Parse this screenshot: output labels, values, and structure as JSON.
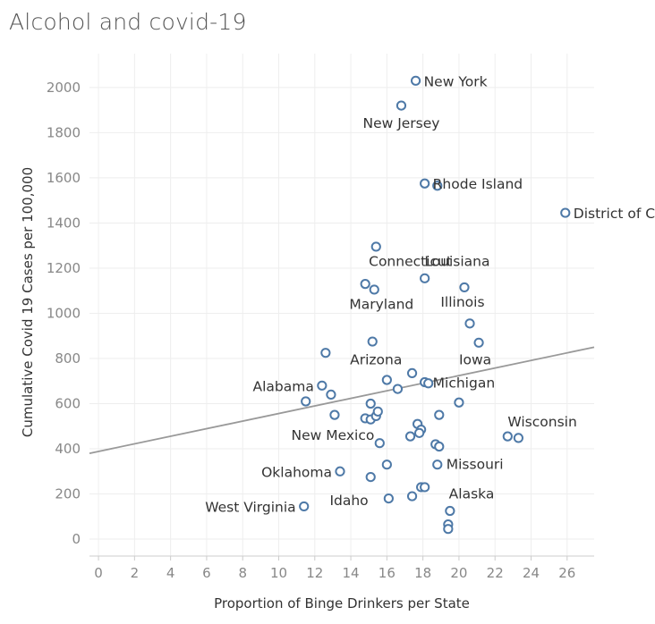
{
  "chart_data": {
    "type": "scatter",
    "title": "Alcohol and covid-19",
    "xlabel": "Proportion of Binge Drinkers per State",
    "ylabel": "Cumulative Covid 19 Cases per 100,000",
    "xlim": [
      -0.5,
      27.5
    ],
    "ylim": [
      -75,
      2150
    ],
    "x_ticks": [
      0,
      2,
      4,
      6,
      8,
      10,
      12,
      14,
      16,
      18,
      20,
      22,
      24,
      26
    ],
    "y_ticks": [
      0,
      200,
      400,
      600,
      800,
      1000,
      1200,
      1400,
      1600,
      1800,
      2000
    ],
    "grid": true,
    "trend_line": {
      "x": [
        -0.5,
        27.5
      ],
      "y": [
        380,
        850
      ]
    },
    "marker_color": "#4e79a7",
    "trend_color": "#999999",
    "points": [
      {
        "x": 17.6,
        "y": 2030,
        "label": "New York"
      },
      {
        "x": 16.8,
        "y": 1920,
        "label": "New Jersey"
      },
      {
        "x": 18.1,
        "y": 1575,
        "label": "Rhode Island"
      },
      {
        "x": 18.8,
        "y": 1565,
        "label": ""
      },
      {
        "x": 25.9,
        "y": 1445,
        "label": "District of Columbia"
      },
      {
        "x": 15.4,
        "y": 1295,
        "label": ""
      },
      {
        "x": 18.1,
        "y": 1155,
        "label": ""
      },
      {
        "x": 14.8,
        "y": 1130,
        "label": ""
      },
      {
        "x": 15.3,
        "y": 1105,
        "label": ""
      },
      {
        "x": 20.3,
        "y": 1115,
        "label": ""
      },
      {
        "x": 20.6,
        "y": 955,
        "label": ""
      },
      {
        "x": 15.2,
        "y": 875,
        "label": ""
      },
      {
        "x": 21.1,
        "y": 870,
        "label": ""
      },
      {
        "x": 12.6,
        "y": 825,
        "label": ""
      },
      {
        "x": 17.4,
        "y": 735,
        "label": ""
      },
      {
        "x": 16.0,
        "y": 705,
        "label": ""
      },
      {
        "x": 18.1,
        "y": 695,
        "label": "Michigan"
      },
      {
        "x": 18.3,
        "y": 690,
        "label": ""
      },
      {
        "x": 16.6,
        "y": 665,
        "label": ""
      },
      {
        "x": 12.4,
        "y": 680,
        "label": "Alabama"
      },
      {
        "x": 12.9,
        "y": 640,
        "label": ""
      },
      {
        "x": 11.5,
        "y": 610,
        "label": ""
      },
      {
        "x": 15.1,
        "y": 600,
        "label": ""
      },
      {
        "x": 20.0,
        "y": 605,
        "label": ""
      },
      {
        "x": 13.1,
        "y": 550,
        "label": ""
      },
      {
        "x": 14.8,
        "y": 535,
        "label": ""
      },
      {
        "x": 15.1,
        "y": 530,
        "label": ""
      },
      {
        "x": 15.4,
        "y": 545,
        "label": ""
      },
      {
        "x": 15.5,
        "y": 565,
        "label": ""
      },
      {
        "x": 18.9,
        "y": 550,
        "label": ""
      },
      {
        "x": 17.7,
        "y": 510,
        "label": ""
      },
      {
        "x": 17.9,
        "y": 485,
        "label": ""
      },
      {
        "x": 17.8,
        "y": 470,
        "label": ""
      },
      {
        "x": 17.3,
        "y": 455,
        "label": ""
      },
      {
        "x": 15.6,
        "y": 425,
        "label": ""
      },
      {
        "x": 18.7,
        "y": 420,
        "label": ""
      },
      {
        "x": 18.9,
        "y": 410,
        "label": ""
      },
      {
        "x": 22.7,
        "y": 455,
        "label": ""
      },
      {
        "x": 23.3,
        "y": 448,
        "label": "Wisconsin"
      },
      {
        "x": 18.8,
        "y": 330,
        "label": "Missouri"
      },
      {
        "x": 16.0,
        "y": 330,
        "label": ""
      },
      {
        "x": 13.4,
        "y": 300,
        "label": "Oklahoma"
      },
      {
        "x": 15.1,
        "y": 275,
        "label": ""
      },
      {
        "x": 17.9,
        "y": 230,
        "label": ""
      },
      {
        "x": 18.1,
        "y": 230,
        "label": ""
      },
      {
        "x": 17.4,
        "y": 190,
        "label": ""
      },
      {
        "x": 16.1,
        "y": 180,
        "label": ""
      },
      {
        "x": 11.4,
        "y": 145,
        "label": "West Virginia"
      },
      {
        "x": 19.5,
        "y": 125,
        "label": ""
      },
      {
        "x": 19.4,
        "y": 65,
        "label": ""
      },
      {
        "x": 19.4,
        "y": 45,
        "label": ""
      }
    ],
    "free_labels": [
      {
        "x": 17.3,
        "y": 1210,
        "text": "Connecticut"
      },
      {
        "x": 19.9,
        "y": 1210,
        "text": "Louisiana"
      },
      {
        "x": 15.7,
        "y": 1020,
        "text": "Maryland"
      },
      {
        "x": 20.2,
        "y": 1030,
        "text": "Illinois"
      },
      {
        "x": 15.4,
        "y": 775,
        "text": "Arizona"
      },
      {
        "x": 20.9,
        "y": 775,
        "text": "Iowa"
      },
      {
        "x": 13.0,
        "y": 440,
        "text": "New Mexico"
      },
      {
        "x": 13.9,
        "y": 150,
        "text": "Idaho"
      },
      {
        "x": 20.7,
        "y": 180,
        "text": "Alaska"
      }
    ]
  }
}
